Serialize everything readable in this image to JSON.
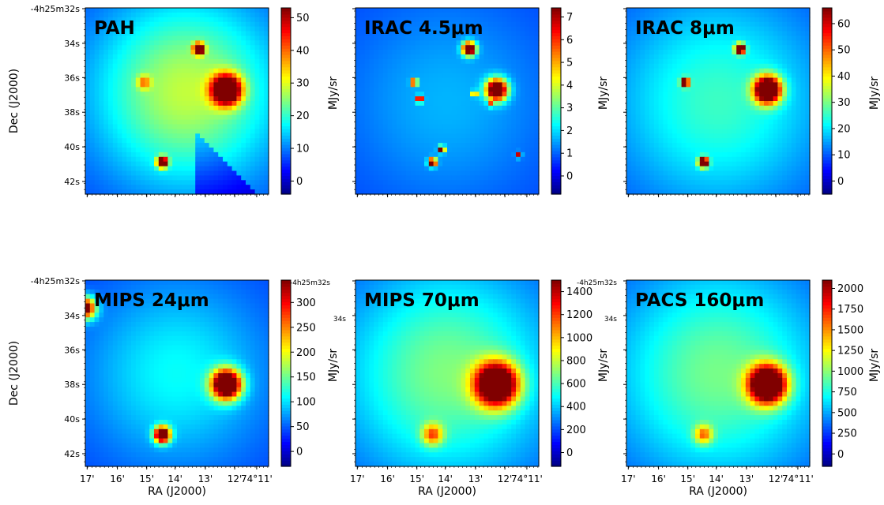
{
  "chart_data": {
    "type": "heatmap",
    "axes": {
      "xlabel": "RA (J2000)",
      "ylabel": "Dec (J2000)",
      "x_ticks": [
        "17'",
        "16'",
        "15'",
        "14'",
        "13'",
        "12'",
        "74°11'"
      ],
      "y_ticks": [
        "-4h25m32s",
        "34s",
        "36s",
        "38s",
        "40s",
        "42s"
      ],
      "colormap": "jet"
    },
    "panels": [
      {
        "title": "PAH",
        "unit": "MJy/sr",
        "range": [
          -4,
          53
        ],
        "cbar_ticks": [
          0,
          10,
          20,
          30,
          40,
          50
        ],
        "show_ylabel": true,
        "show_xlabel": false,
        "sources": [
          {
            "ra_frac": 0.77,
            "dec_frac": 0.44,
            "sigma": 0.055,
            "peak": 60
          },
          {
            "ra_frac": 0.62,
            "dec_frac": 0.22,
            "sigma": 0.02,
            "peak": 60
          },
          {
            "ra_frac": 0.42,
            "dec_frac": 0.83,
            "sigma": 0.02,
            "peak": 60
          },
          {
            "ra_frac": 0.32,
            "dec_frac": 0.4,
            "sigma": 0.025,
            "peak": 18
          }
        ],
        "ridge": [
          0.55,
          0.45,
          0.35,
          22
        ]
      },
      {
        "title": "IRAC 4.5μm",
        "unit": "MJy/sr",
        "range": [
          -0.8,
          7.4
        ],
        "cbar_ticks": [
          0,
          1,
          2,
          3,
          4,
          5,
          6,
          7
        ],
        "show_ylabel": false,
        "show_xlabel": false,
        "sources": [
          {
            "ra_frac": 0.77,
            "dec_frac": 0.44,
            "sigma": 0.04,
            "peak": 9
          },
          {
            "ra_frac": 0.62,
            "dec_frac": 0.22,
            "sigma": 0.025,
            "peak": 9
          },
          {
            "ra_frac": 0.42,
            "dec_frac": 0.83,
            "sigma": 0.015,
            "peak": 9
          },
          {
            "ra_frac": 0.32,
            "dec_frac": 0.4,
            "sigma": 0.012,
            "peak": 8
          },
          {
            "ra_frac": 0.35,
            "dec_frac": 0.49,
            "sigma": 0.012,
            "peak": 8
          },
          {
            "ra_frac": 0.47,
            "dec_frac": 0.76,
            "sigma": 0.012,
            "peak": 8
          },
          {
            "ra_frac": 0.65,
            "dec_frac": 0.46,
            "sigma": 0.01,
            "peak": 6
          },
          {
            "ra_frac": 0.89,
            "dec_frac": 0.79,
            "sigma": 0.01,
            "peak": 6
          },
          {
            "ra_frac": 0.74,
            "dec_frac": 0.52,
            "sigma": 0.008,
            "peak": 5
          }
        ],
        "ridge": [
          0.5,
          0.5,
          0.4,
          1.0
        ]
      },
      {
        "title": "IRAC 8μm",
        "unit": "MJy/sr",
        "range": [
          -5,
          66
        ],
        "cbar_ticks": [
          0,
          10,
          20,
          30,
          40,
          50,
          60
        ],
        "show_ylabel": false,
        "show_xlabel": false,
        "sources": [
          {
            "ra_frac": 0.77,
            "dec_frac": 0.44,
            "sigma": 0.05,
            "peak": 80
          },
          {
            "ra_frac": 0.62,
            "dec_frac": 0.22,
            "sigma": 0.018,
            "peak": 80
          },
          {
            "ra_frac": 0.42,
            "dec_frac": 0.83,
            "sigma": 0.018,
            "peak": 80
          },
          {
            "ra_frac": 0.32,
            "dec_frac": 0.4,
            "sigma": 0.015,
            "peak": 70
          }
        ],
        "ridge": [
          0.5,
          0.5,
          0.4,
          18
        ]
      },
      {
        "title": "MIPS 24μm",
        "unit": "MJy/sr",
        "range": [
          -30,
          345
        ],
        "cbar_ticks": [
          0,
          50,
          100,
          150,
          200,
          250,
          300
        ],
        "show_ylabel": true,
        "show_xlabel": true,
        "sources": [
          {
            "ra_frac": 0.77,
            "dec_frac": 0.56,
            "sigma": 0.055,
            "peak": 420
          },
          {
            "ra_frac": 0.42,
            "dec_frac": 0.83,
            "sigma": 0.03,
            "peak": 400
          },
          {
            "ra_frac": 0.0,
            "dec_frac": 0.15,
            "sigma": 0.04,
            "peak": 320
          }
        ],
        "ridge": [
          0.5,
          0.5,
          0.35,
          75
        ]
      },
      {
        "title": "MIPS 70μm",
        "unit": "MJy/sr",
        "range": [
          -120,
          1500
        ],
        "cbar_ticks": [
          0,
          200,
          400,
          600,
          800,
          1000,
          1200,
          1400
        ],
        "show_ylabel": false,
        "show_xlabel": true,
        "sources": [
          {
            "ra_frac": 0.77,
            "dec_frac": 0.56,
            "sigma": 0.08,
            "peak": 1700
          },
          {
            "ra_frac": 0.42,
            "dec_frac": 0.83,
            "sigma": 0.04,
            "peak": 700
          }
        ],
        "ridge": [
          0.5,
          0.5,
          0.4,
          520
        ]
      },
      {
        "title": "PACS 160μm",
        "unit": "MJy/sr",
        "range": [
          -150,
          2100
        ],
        "cbar_ticks": [
          0,
          250,
          500,
          750,
          1000,
          1250,
          1500,
          1750,
          2000
        ],
        "show_ylabel": false,
        "show_xlabel": true,
        "sources": [
          {
            "ra_frac": 0.77,
            "dec_frac": 0.56,
            "sigma": 0.07,
            "peak": 2500
          },
          {
            "ra_frac": 0.42,
            "dec_frac": 0.83,
            "sigma": 0.035,
            "peak": 900
          }
        ],
        "ridge": [
          0.5,
          0.5,
          0.4,
          700
        ]
      }
    ],
    "stray_labels": [
      "-4h25m32s",
      "34s",
      "-4h25m32s",
      "34s"
    ]
  }
}
